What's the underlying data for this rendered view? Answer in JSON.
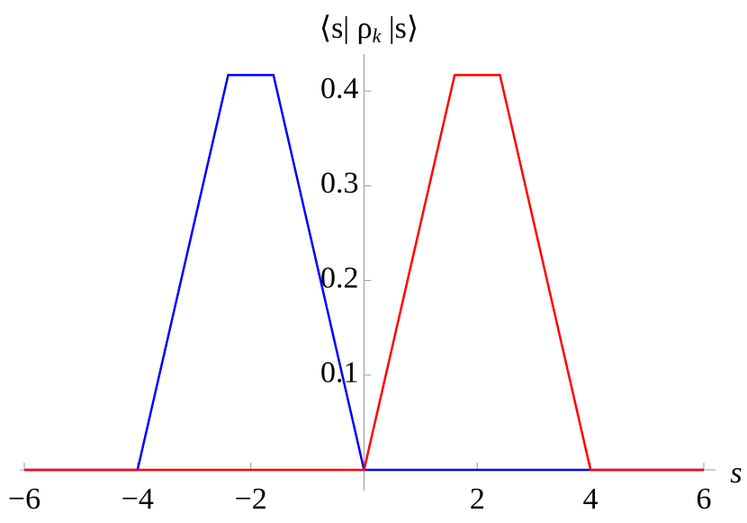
{
  "chart_data": {
    "type": "line",
    "ylabel": {
      "before": "⟨s| ρ",
      "sub": "k",
      "after": " |s⟩"
    },
    "xlabel": "s",
    "series": [
      {
        "color": "#0000ff",
        "x": [
          -6,
          -4,
          -2.4,
          -1.6,
          0,
          6
        ],
        "values": [
          0,
          0,
          0.417,
          0.417,
          0,
          0
        ]
      },
      {
        "color": "#ff0000",
        "x": [
          -6,
          0,
          1.6,
          2.4,
          4,
          6
        ],
        "values": [
          0,
          0,
          0.417,
          0.417,
          0,
          0
        ]
      }
    ],
    "xlim": [
      -6,
      6
    ],
    "ylim": [
      0,
      0.44
    ],
    "xticks": [
      {
        "value": -6,
        "label": "−6"
      },
      {
        "value": -4,
        "label": "−4"
      },
      {
        "value": -2,
        "label": "−2"
      },
      2,
      4,
      6
    ],
    "yticks": [
      0.1,
      0.2,
      0.3,
      0.4
    ]
  }
}
